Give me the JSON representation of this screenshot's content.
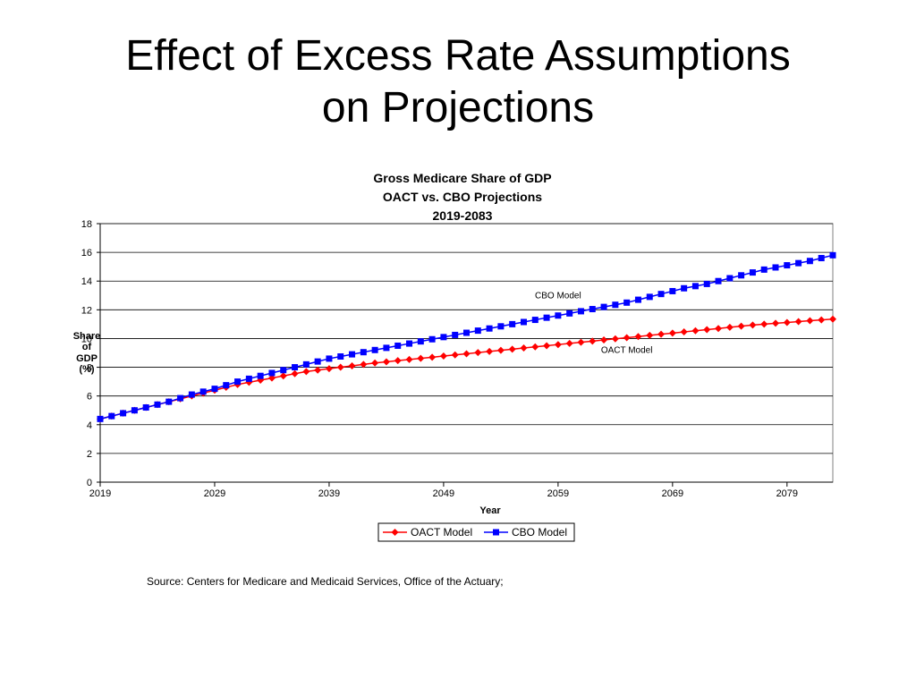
{
  "slide": {
    "title_line1": "Effect of Excess Rate Assumptions",
    "title_line2": "on Projections",
    "source": "Source:  Centers for Medicare and Medicaid Services, Office of the Actuary;"
  },
  "chart_data": {
    "type": "line",
    "title_lines": [
      "Gross Medicare Share of GDP",
      "OACT vs.  CBO Projections",
      "2019-2083"
    ],
    "xlabel": "Year",
    "ylabel_lines": [
      "Share",
      "of",
      "GDP",
      "(%)"
    ],
    "xlim": [
      2019,
      2083
    ],
    "ylim": [
      0,
      18
    ],
    "xticks": [
      2019,
      2029,
      2039,
      2049,
      2059,
      2069,
      2079
    ],
    "yticks": [
      0,
      2,
      4,
      6,
      8,
      10,
      12,
      14,
      16,
      18
    ],
    "grid": "horizontal",
    "legend_position": "bottom",
    "annotations": [
      {
        "text": "CBO Model",
        "x": 2059,
        "y": 12.8
      },
      {
        "text": "OACT Model",
        "x": 2065,
        "y": 9.0
      }
    ],
    "x": [
      2019,
      2020,
      2021,
      2022,
      2023,
      2024,
      2025,
      2026,
      2027,
      2028,
      2029,
      2030,
      2031,
      2032,
      2033,
      2034,
      2035,
      2036,
      2037,
      2038,
      2039,
      2040,
      2041,
      2042,
      2043,
      2044,
      2045,
      2046,
      2047,
      2048,
      2049,
      2050,
      2051,
      2052,
      2053,
      2054,
      2055,
      2056,
      2057,
      2058,
      2059,
      2060,
      2061,
      2062,
      2063,
      2064,
      2065,
      2066,
      2067,
      2068,
      2069,
      2070,
      2071,
      2072,
      2073,
      2074,
      2075,
      2076,
      2077,
      2078,
      2079,
      2080,
      2081,
      2082,
      2083
    ],
    "series": [
      {
        "name": "OACT Model",
        "color": "#ff0000",
        "marker": "diamond",
        "values": [
          4.4,
          4.6,
          4.8,
          5.0,
          5.2,
          5.4,
          5.6,
          5.8,
          6.0,
          6.2,
          6.4,
          6.6,
          6.8,
          6.95,
          7.1,
          7.25,
          7.4,
          7.55,
          7.7,
          7.8,
          7.9,
          8.0,
          8.1,
          8.2,
          8.3,
          8.38,
          8.46,
          8.54,
          8.62,
          8.7,
          8.78,
          8.86,
          8.94,
          9.02,
          9.1,
          9.18,
          9.26,
          9.34,
          9.42,
          9.5,
          9.58,
          9.66,
          9.74,
          9.82,
          9.9,
          9.98,
          10.06,
          10.14,
          10.22,
          10.3,
          10.38,
          10.46,
          10.54,
          10.62,
          10.7,
          10.78,
          10.86,
          10.94,
          11.0,
          11.06,
          11.12,
          11.18,
          11.24,
          11.3,
          11.35
        ]
      },
      {
        "name": "CBO Model",
        "color": "#0000ff",
        "marker": "square",
        "values": [
          4.4,
          4.6,
          4.8,
          5.0,
          5.2,
          5.4,
          5.6,
          5.85,
          6.1,
          6.3,
          6.5,
          6.75,
          7.0,
          7.2,
          7.4,
          7.6,
          7.8,
          8.0,
          8.2,
          8.4,
          8.6,
          8.75,
          8.9,
          9.05,
          9.2,
          9.35,
          9.5,
          9.65,
          9.8,
          9.95,
          10.1,
          10.25,
          10.4,
          10.55,
          10.7,
          10.85,
          11.0,
          11.15,
          11.3,
          11.45,
          11.6,
          11.75,
          11.9,
          12.05,
          12.2,
          12.35,
          12.5,
          12.7,
          12.9,
          13.1,
          13.3,
          13.5,
          13.65,
          13.8,
          14.0,
          14.2,
          14.4,
          14.6,
          14.8,
          14.95,
          15.1,
          15.25,
          15.4,
          15.6,
          15.8
        ]
      }
    ]
  }
}
